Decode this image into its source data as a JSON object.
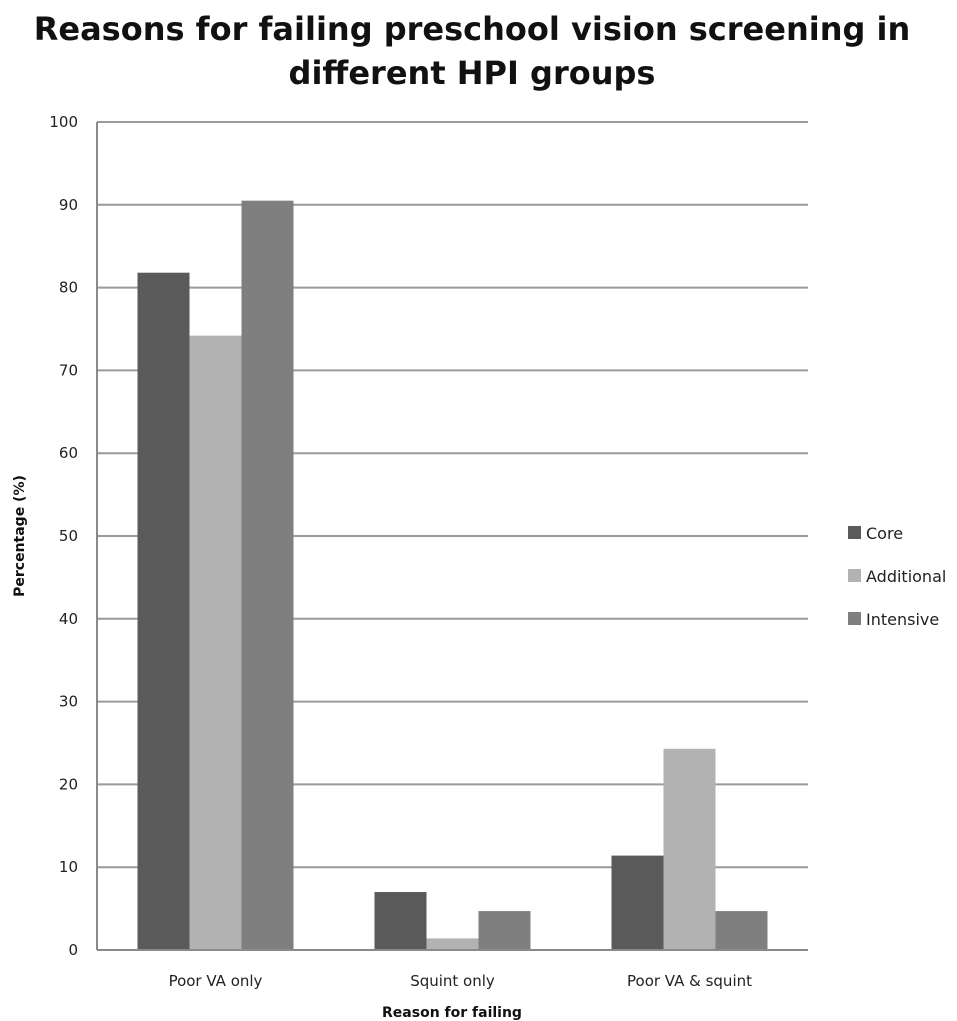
{
  "chart_data": {
    "type": "bar",
    "title_lines": [
      "Reasons for failing preschool vision screening in",
      "different HPI groups"
    ],
    "xlabel": "Reason for failing",
    "ylabel": "Percentage (%)",
    "categories": [
      "Poor VA only",
      "Squint only",
      "Poor VA & squint"
    ],
    "yticks": [
      "100",
      "90",
      "80",
      "70",
      "60",
      "50",
      "40",
      "30",
      "20",
      "10",
      "0"
    ],
    "ylim": [
      0,
      100
    ],
    "grid": true,
    "legend_position": "right",
    "series": [
      {
        "name": "Core",
        "color": "#5a5a5a",
        "values": [
          81.8,
          7.0,
          11.4
        ]
      },
      {
        "name": "Additional",
        "color": "#b2b2b2",
        "values": [
          74.2,
          1.4,
          24.3
        ]
      },
      {
        "name": "Intensive",
        "color": "#7f7f7f",
        "values": [
          90.5,
          4.7,
          4.7
        ]
      }
    ]
  }
}
